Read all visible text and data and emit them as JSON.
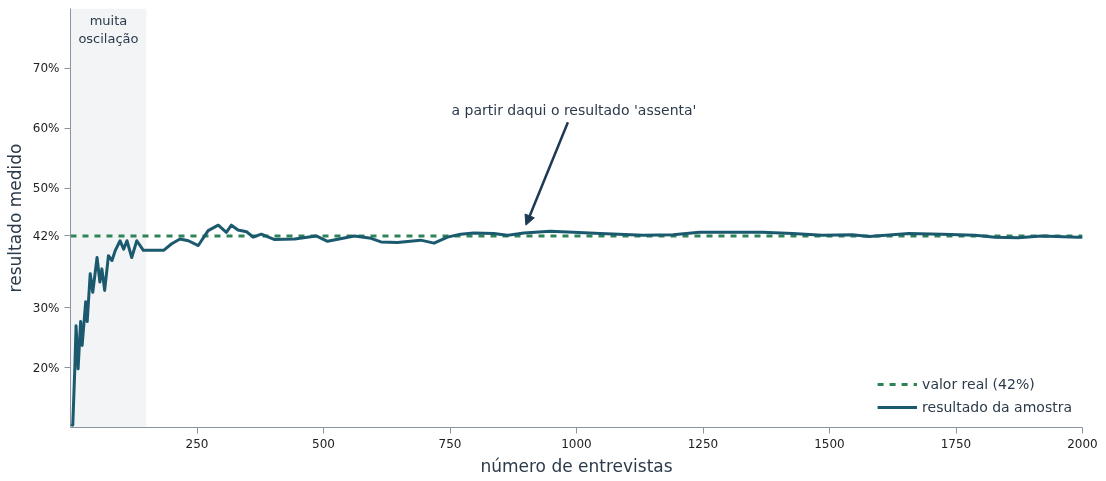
{
  "chart_data": {
    "type": "line",
    "xlabel": "número de entrevistas",
    "ylabel": "resultado medido",
    "x": [
      1,
      4.5,
      8.5,
      11,
      15,
      20,
      23,
      30,
      33,
      39,
      44,
      52.5,
      58,
      62,
      67.5,
      75,
      82,
      88.6,
      98,
      105,
      111.6,
      121,
      131,
      144,
      161,
      184,
      200,
      216.5,
      233,
      252.5,
      272,
      292,
      308,
      318,
      331,
      348,
      361,
      377,
      403.5,
      443,
      485.6,
      508,
      561,
      594,
      613.5,
      646,
      692,
      718.5,
      745,
      771,
      797,
      836.6,
      863,
      896,
      948,
      994,
      1047,
      1132,
      1191,
      1243,
      1296,
      1368,
      1427,
      1486,
      1545,
      1578,
      1657,
      1722,
      1788,
      1827,
      1873,
      1919,
      1991,
      2000
    ],
    "series": [
      {
        "name": "resultado da amostra",
        "color": "#1b5a6e",
        "values": [
          10.5,
          10.4,
          19.8,
          27,
          19.8,
          27.7,
          23.7,
          31,
          27.7,
          35.7,
          32.6,
          38.4,
          34.3,
          36.5,
          32.9,
          38.7,
          37.9,
          39.6,
          41.2,
          39.8,
          41.2,
          38.4,
          41.2,
          39.6,
          39.6,
          39.6,
          40.7,
          41.5,
          41.2,
          40.4,
          42.9,
          43.8,
          42.6,
          43.8,
          43,
          42.7,
          41.8,
          42.3,
          41.4,
          41.5,
          42,
          41.1,
          42,
          41.6,
          41,
          40.9,
          41.3,
          40.8,
          41.8,
          42.3,
          42.5,
          42.4,
          42.1,
          42.5,
          42.8,
          42.6,
          42.4,
          42.1,
          42.2,
          42.6,
          42.6,
          42.6,
          42.4,
          42.1,
          42.2,
          41.9,
          42.4,
          42.3,
          42.1,
          41.8,
          41.7,
          42,
          41.8,
          41.8
        ]
      }
    ],
    "xlim": [
      0,
      2000
    ],
    "xticks": [
      250,
      500,
      750,
      1000,
      1250,
      1500,
      1750,
      2000
    ],
    "ylim": [
      10,
      80
    ],
    "yticks": [
      {
        "value": 20,
        "label": "20%"
      },
      {
        "value": 30,
        "label": "30%"
      },
      {
        "value": 42,
        "label": "42%"
      },
      {
        "value": 50,
        "label": "50%"
      },
      {
        "value": 60,
        "label": "60%"
      },
      {
        "value": 70,
        "label": "70%"
      }
    ],
    "ref_lines": [
      {
        "axis": "y",
        "value": 42,
        "label": "valor real (42%)",
        "color": "#2e8457",
        "line_style": "dashed"
      }
    ],
    "bands": [
      {
        "axis": "x",
        "from": 0,
        "to": 150,
        "label": "muita\noscilação",
        "color": "#f2f4f6"
      }
    ],
    "annotations": [
      {
        "text": "a partir daqui o resultado 'assenta'",
        "x": 900,
        "y": 42.5
      }
    ],
    "legend": "bottom right",
    "grid": false,
    "line_style": "solid",
    "marker": "none"
  }
}
